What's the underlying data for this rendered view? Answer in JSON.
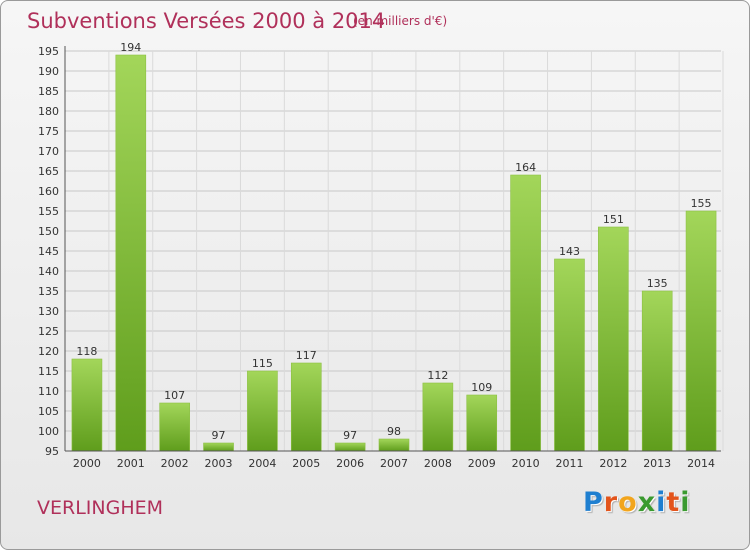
{
  "header": {
    "title": "Subventions Versées 2000 à 2014",
    "unit_note": "(en milliers d'€)"
  },
  "footer": {
    "commune": "VERLINGHEM",
    "logo_letters": [
      "P",
      "r",
      "o",
      "x",
      "i",
      "t",
      "i"
    ]
  },
  "colors": {
    "title": "#b0305a",
    "bar_light": "#a3d65a",
    "bar_dark": "#5f9d1c",
    "logo": [
      "#1f7fd0",
      "#e3541b",
      "#f2a51d",
      "#3a9a2f",
      "#1f7fd0",
      "#e3541b",
      "#3a9a2f"
    ]
  },
  "chart_data": {
    "type": "bar",
    "title": "Subventions Versées 2000 à 2014",
    "subtitle": "(en milliers d'€)",
    "categories": [
      "2000",
      "2001",
      "2002",
      "2003",
      "2004",
      "2005",
      "2006",
      "2007",
      "2008",
      "2009",
      "2010",
      "2011",
      "2012",
      "2013",
      "2014"
    ],
    "values": [
      118,
      194,
      107,
      97,
      115,
      117,
      97,
      98,
      112,
      109,
      164,
      143,
      151,
      135,
      155
    ],
    "xlabel": "",
    "ylabel": "",
    "ylim": [
      95,
      195
    ],
    "yticks": [
      95,
      100,
      105,
      110,
      115,
      120,
      125,
      130,
      135,
      140,
      145,
      150,
      155,
      160,
      165,
      170,
      175,
      180,
      185,
      190,
      195
    ],
    "grid": true,
    "legend": "none"
  }
}
